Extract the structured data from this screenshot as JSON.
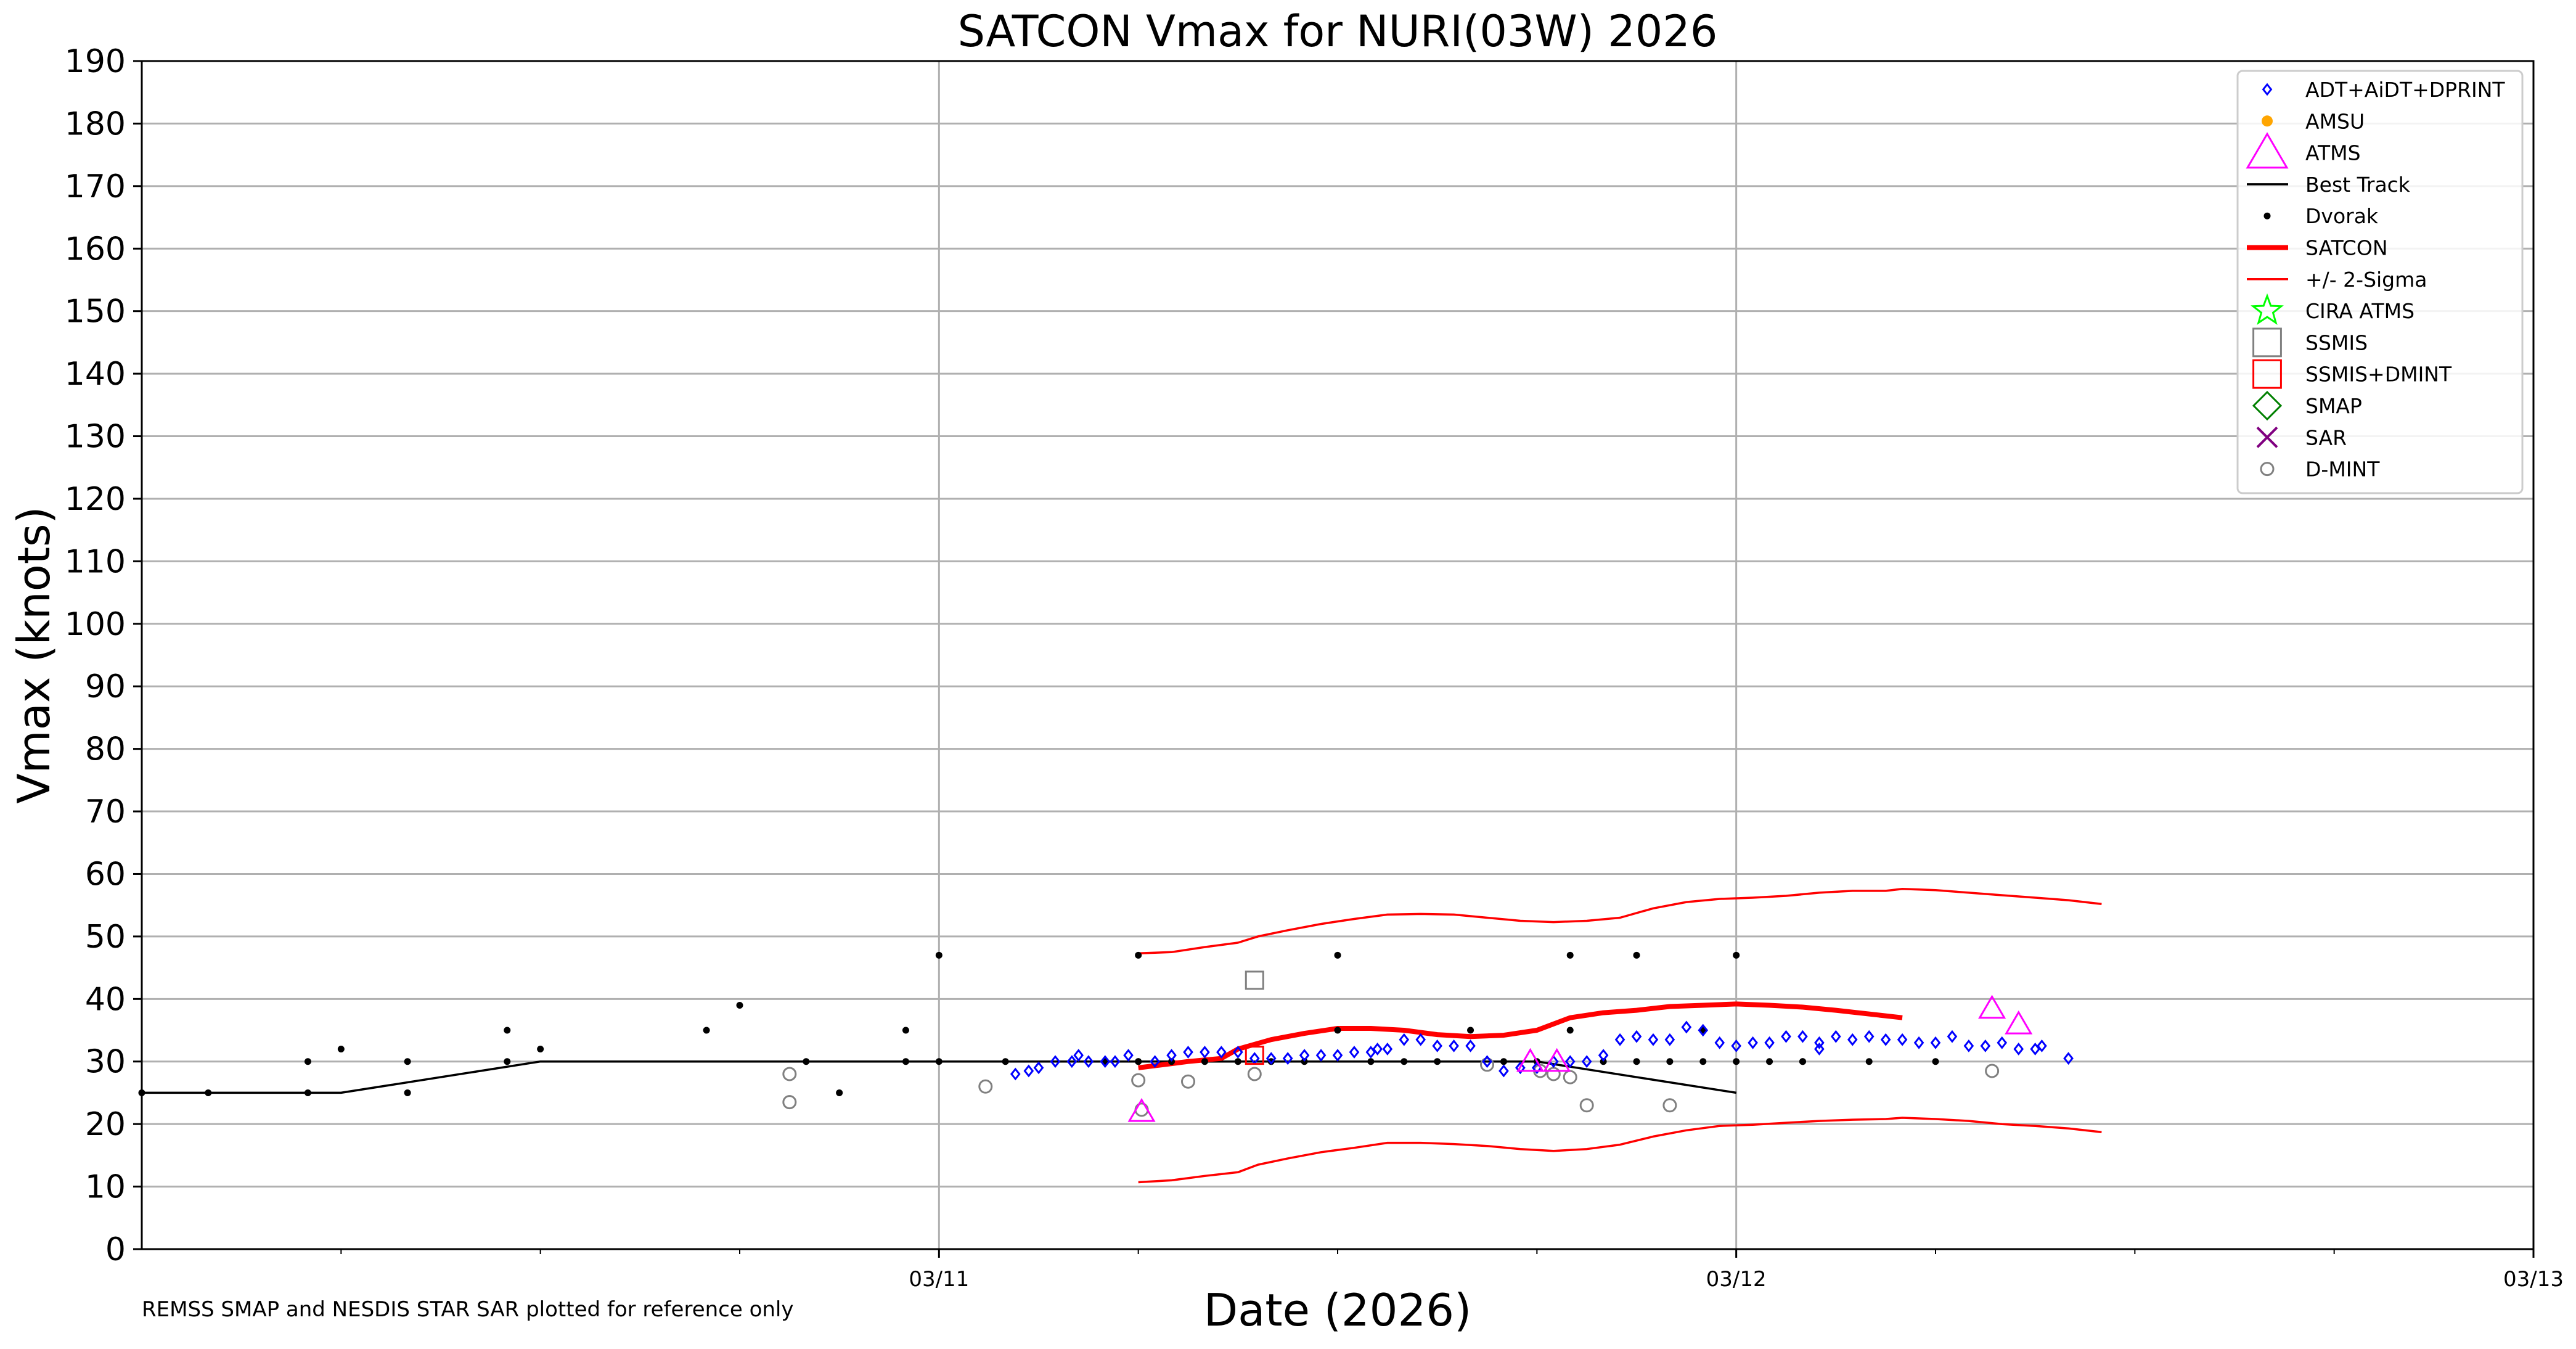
{
  "chart_data": {
    "type": "scatter",
    "title": "SATCON Vmax for NURI(03W) 2026",
    "xlabel": "Date (2026)",
    "ylabel": "Vmax (knots)",
    "note": "REMSS SMAP and NESDIS STAR SAR plotted for reference only",
    "x_unit": "hours since 2026-03-10 00:00 UTC",
    "xlim": [
      0,
      72
    ],
    "ylim": [
      0,
      190
    ],
    "yticks": [
      0,
      10,
      20,
      30,
      40,
      50,
      60,
      70,
      80,
      90,
      100,
      110,
      120,
      130,
      140,
      150,
      160,
      170,
      180,
      190
    ],
    "xticks_major": [
      {
        "x": 24,
        "label": "03/11"
      },
      {
        "x": 48,
        "label": "03/12"
      },
      {
        "x": 72,
        "label": "03/13"
      }
    ],
    "xticks_minor": [
      6,
      12,
      18,
      30,
      36,
      42,
      54,
      60,
      66
    ],
    "grid": true,
    "legend_position": "top-right",
    "colors": {
      "adt": "#0000ff",
      "amsu": "#ffa500",
      "atms": "#ff00ff",
      "best_track": "#000000",
      "dvorak": "#000000",
      "satcon": "#ff0000",
      "sigma": "#ff0000",
      "cira_atms": "#00ff00",
      "ssmis": "#808080",
      "ssmis_dmint": "#ff0000",
      "smap": "#008000",
      "sar": "#800080",
      "dmint": "#808080",
      "grid": "#b0b0b0"
    },
    "legend": [
      {
        "key": "adt",
        "label": "ADT+AiDT+DPRINT",
        "marker": "diamond"
      },
      {
        "key": "amsu",
        "label": "AMSU",
        "marker": "dot"
      },
      {
        "key": "atms",
        "label": "ATMS",
        "marker": "triangle"
      },
      {
        "key": "best_track",
        "label": "Best Track",
        "marker": "line"
      },
      {
        "key": "dvorak",
        "label": "Dvorak",
        "marker": "point"
      },
      {
        "key": "satcon",
        "label": "SATCON",
        "marker": "thickline"
      },
      {
        "key": "sigma",
        "label": "+/- 2-Sigma",
        "marker": "line"
      },
      {
        "key": "cira_atms",
        "label": "CIRA ATMS",
        "marker": "star"
      },
      {
        "key": "ssmis",
        "label": "SSMIS",
        "marker": "square"
      },
      {
        "key": "ssmis_dmint",
        "label": "SSMIS+DMINT",
        "marker": "square"
      },
      {
        "key": "smap",
        "label": "SMAP",
        "marker": "bigdiamond"
      },
      {
        "key": "sar",
        "label": "SAR",
        "marker": "x"
      },
      {
        "key": "dmint",
        "label": "D-MINT",
        "marker": "circle"
      }
    ],
    "series": [
      {
        "key": "best_track",
        "name": "Best Track",
        "type": "line",
        "points": [
          [
            0,
            25
          ],
          [
            6,
            25
          ],
          [
            12,
            30
          ],
          [
            18,
            30
          ],
          [
            24,
            30
          ],
          [
            30,
            30
          ],
          [
            36,
            30
          ],
          [
            42,
            30
          ],
          [
            48,
            25
          ]
        ]
      },
      {
        "key": "satcon",
        "name": "SATCON",
        "type": "line",
        "points": [
          [
            3,
            29
          ],
          [
            4.5,
            30
          ],
          [
            5.5,
            30.5
          ],
          [
            6,
            32
          ],
          [
            7,
            33.5
          ],
          [
            8,
            34.5
          ],
          [
            9,
            35.3
          ],
          [
            10,
            35.3
          ],
          [
            11,
            35
          ],
          [
            12,
            34.3
          ],
          [
            13,
            34
          ],
          [
            14,
            34.2
          ],
          [
            15,
            35
          ],
          [
            16,
            37
          ],
          [
            17,
            37.8
          ],
          [
            18,
            38.2
          ],
          [
            19,
            38.8
          ],
          [
            20,
            39
          ],
          [
            21,
            39.2
          ],
          [
            22,
            39
          ],
          [
            23,
            38.7
          ],
          [
            24,
            38.2
          ],
          [
            26,
            37
          ]
        ],
        "x_offset": 27
      },
      {
        "key": "sigma",
        "name": "+2 Sigma",
        "type": "line",
        "points": [
          [
            30,
            47.3
          ],
          [
            31,
            47.5
          ],
          [
            32,
            48.3
          ],
          [
            33,
            49
          ],
          [
            33.6,
            50
          ],
          [
            34.5,
            51
          ],
          [
            35.5,
            52
          ],
          [
            36.5,
            52.8
          ],
          [
            37.5,
            53.5
          ],
          [
            38.5,
            53.6
          ],
          [
            39.5,
            53.5
          ],
          [
            40.5,
            53
          ],
          [
            41.5,
            52.5
          ],
          [
            42.5,
            52.3
          ],
          [
            43.5,
            52.5
          ],
          [
            44.5,
            53
          ],
          [
            45.5,
            54.5
          ],
          [
            46.5,
            55.5
          ],
          [
            47.5,
            56
          ],
          [
            48.5,
            56.2
          ],
          [
            49.5,
            56.5
          ],
          [
            50.5,
            57
          ],
          [
            51.5,
            57.3
          ],
          [
            52.5,
            57.3
          ],
          [
            53,
            57.6
          ],
          [
            54,
            57.4
          ],
          [
            55,
            57
          ],
          [
            56,
            56.6
          ],
          [
            57,
            56.2
          ],
          [
            58,
            55.8
          ],
          [
            59,
            55.2
          ]
        ]
      },
      {
        "key": "sigma",
        "name": "-2 Sigma",
        "type": "line",
        "points": [
          [
            30,
            10.7
          ],
          [
            31,
            11
          ],
          [
            32,
            11.7
          ],
          [
            33,
            12.3
          ],
          [
            33.6,
            13.5
          ],
          [
            34.5,
            14.5
          ],
          [
            35.5,
            15.5
          ],
          [
            36.5,
            16.2
          ],
          [
            37.5,
            17
          ],
          [
            38.5,
            17
          ],
          [
            39.5,
            16.8
          ],
          [
            40.5,
            16.5
          ],
          [
            41.5,
            16
          ],
          [
            42.5,
            15.7
          ],
          [
            43.5,
            16
          ],
          [
            44.5,
            16.7
          ],
          [
            45.5,
            18
          ],
          [
            46.5,
            19
          ],
          [
            47.5,
            19.7
          ],
          [
            48.5,
            19.9
          ],
          [
            49.5,
            20.2
          ],
          [
            50.5,
            20.5
          ],
          [
            51.5,
            20.7
          ],
          [
            52.5,
            20.8
          ],
          [
            53,
            21
          ],
          [
            54,
            20.8
          ],
          [
            55,
            20.5
          ],
          [
            56,
            20
          ],
          [
            57,
            19.7
          ],
          [
            58,
            19.3
          ],
          [
            59,
            18.7
          ]
        ]
      },
      {
        "key": "dvorak",
        "name": "Dvorak",
        "type": "scatter",
        "points": [
          [
            0,
            25
          ],
          [
            2,
            25
          ],
          [
            5,
            25
          ],
          [
            5,
            30
          ],
          [
            6,
            32
          ],
          [
            8,
            25
          ],
          [
            8,
            30
          ],
          [
            11,
            30
          ],
          [
            11,
            35
          ],
          [
            12,
            32
          ],
          [
            17,
            35
          ],
          [
            18,
            39
          ],
          [
            20,
            30
          ],
          [
            21,
            25
          ],
          [
            23,
            30
          ],
          [
            23,
            35
          ],
          [
            24,
            30
          ],
          [
            24,
            47
          ],
          [
            26,
            30
          ],
          [
            29,
            30
          ],
          [
            30,
            30
          ],
          [
            31,
            30
          ],
          [
            32,
            30
          ],
          [
            33,
            30
          ],
          [
            34,
            30
          ],
          [
            35,
            30
          ],
          [
            36,
            35
          ],
          [
            37,
            30
          ],
          [
            38,
            30
          ],
          [
            39,
            30
          ],
          [
            40,
            35
          ],
          [
            41,
            30
          ],
          [
            42,
            30
          ],
          [
            43,
            35
          ],
          [
            44,
            30
          ],
          [
            46,
            30
          ],
          [
            48,
            30
          ],
          [
            48,
            47
          ],
          [
            30,
            47
          ],
          [
            36,
            47
          ],
          [
            43,
            47
          ],
          [
            45,
            47
          ],
          [
            47,
            35
          ],
          [
            50,
            30
          ],
          [
            47,
            30
          ],
          [
            45,
            30
          ],
          [
            49,
            30
          ],
          [
            50,
            30
          ],
          [
            52,
            30
          ],
          [
            54,
            30
          ],
          [
            30,
            30
          ]
        ]
      },
      {
        "key": "adt",
        "name": "ADT+AiDT+DPRINT",
        "type": "scatter",
        "points": [
          [
            26.3,
            28
          ],
          [
            26.7,
            28.5
          ],
          [
            27,
            29
          ],
          [
            27.5,
            30
          ],
          [
            28,
            30
          ],
          [
            28.2,
            31
          ],
          [
            28.5,
            30
          ],
          [
            29,
            30
          ],
          [
            29.3,
            30
          ],
          [
            29.7,
            31
          ],
          [
            30.5,
            30
          ],
          [
            31,
            31
          ],
          [
            31.5,
            31.5
          ],
          [
            32,
            31.5
          ],
          [
            32.5,
            31.5
          ],
          [
            33,
            31.5
          ],
          [
            33.5,
            30.5
          ],
          [
            34,
            30.5
          ],
          [
            34.5,
            30.5
          ],
          [
            35,
            31
          ],
          [
            35.5,
            31
          ],
          [
            36,
            31
          ],
          [
            36.5,
            31.5
          ],
          [
            37,
            31.5
          ],
          [
            37.2,
            32
          ],
          [
            37.5,
            32
          ],
          [
            38,
            33.5
          ],
          [
            38.5,
            33.5
          ],
          [
            39,
            32.5
          ],
          [
            39.5,
            32.5
          ],
          [
            40,
            32.5
          ],
          [
            40.5,
            30
          ],
          [
            41,
            28.5
          ],
          [
            41.5,
            29
          ],
          [
            42,
            29
          ],
          [
            42.5,
            30
          ],
          [
            43,
            30
          ],
          [
            43.5,
            30
          ],
          [
            44,
            31
          ],
          [
            44.5,
            33.5
          ],
          [
            45,
            34
          ],
          [
            45.5,
            33.5
          ],
          [
            46,
            33.5
          ],
          [
            46.5,
            35.5
          ],
          [
            47,
            35
          ],
          [
            47.5,
            33
          ],
          [
            48,
            32.5
          ],
          [
            48.5,
            33
          ],
          [
            49,
            33
          ],
          [
            49.5,
            34
          ],
          [
            50,
            34
          ],
          [
            50.5,
            33
          ],
          [
            50.5,
            32
          ],
          [
            51,
            34
          ],
          [
            51.5,
            33.5
          ],
          [
            52,
            34
          ],
          [
            52.5,
            33.5
          ],
          [
            53,
            33.5
          ],
          [
            53.5,
            33
          ],
          [
            54,
            33
          ],
          [
            54.5,
            34
          ],
          [
            55,
            32.5
          ],
          [
            55.5,
            32.5
          ],
          [
            56,
            33
          ],
          [
            56.5,
            32
          ],
          [
            57,
            32
          ],
          [
            57.2,
            32.5
          ],
          [
            58,
            30.5
          ]
        ],
        "x_offset_note": "estimated",
        "x_offset": 0
      },
      {
        "key": "atms",
        "name": "ATMS",
        "type": "scatter",
        "points": [
          [
            30.1,
            22
          ],
          [
            41.8,
            30
          ],
          [
            42.6,
            30
          ],
          [
            55.7,
            38.5
          ],
          [
            56.5,
            36
          ]
        ]
      },
      {
        "key": "ssmis",
        "name": "SSMIS",
        "type": "scatter",
        "points": [
          [
            33.5,
            43
          ]
        ]
      },
      {
        "key": "ssmis_dmint",
        "name": "SSMIS+DMINT",
        "type": "scatter",
        "points": [
          [
            33.5,
            31
          ]
        ]
      },
      {
        "key": "dmint",
        "name": "D-MINT",
        "type": "scatter",
        "points": [
          [
            19.5,
            28
          ],
          [
            19.5,
            23.5
          ],
          [
            25.4,
            26
          ],
          [
            30,
            27
          ],
          [
            30.1,
            22.3
          ],
          [
            31.5,
            26.8
          ],
          [
            33.5,
            28
          ],
          [
            40.5,
            29.5
          ],
          [
            42.1,
            28.5
          ],
          [
            42.5,
            28
          ],
          [
            43,
            27.5
          ],
          [
            43.5,
            23
          ],
          [
            46,
            23
          ],
          [
            55.7,
            28.5
          ]
        ]
      }
    ]
  }
}
